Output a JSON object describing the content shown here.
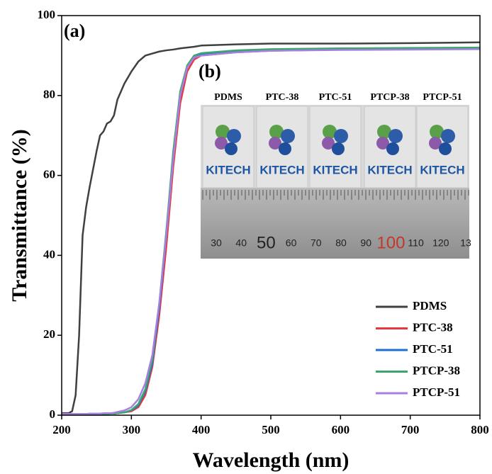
{
  "chart_data": {
    "type": "line",
    "panel_label": "(a)",
    "x_label": "Wavelength (nm)",
    "y_label": "Transmittance (%)",
    "x": [
      200,
      210,
      215,
      220,
      225,
      230,
      235,
      240,
      250,
      255,
      260,
      265,
      270,
      275,
      280,
      290,
      300,
      310,
      320,
      330,
      340,
      350,
      360,
      370,
      380,
      390,
      400,
      450,
      500,
      600,
      700,
      800
    ],
    "series": [
      {
        "name": "PDMS",
        "color": "#404040",
        "values": [
          0.5,
          0.5,
          1,
          5,
          20,
          45,
          52,
          57,
          66,
          70,
          71,
          73,
          73.5,
          75,
          79,
          83,
          86,
          88.5,
          90,
          90.5,
          91,
          91.3,
          91.5,
          91.8,
          92,
          92.2,
          92.5,
          92.8,
          93,
          93,
          93.1,
          93.3
        ]
      },
      {
        "name": "PTC-38",
        "color": "#e8383d",
        "values": [
          0.2,
          0.2,
          0.2,
          0.2,
          0.2,
          0.2,
          0.2,
          0.2,
          0.3,
          0.3,
          0.3,
          0.3,
          0.4,
          0.4,
          0.5,
          0.7,
          1,
          2,
          5,
          12,
          25,
          42,
          62,
          78,
          86,
          89,
          90,
          90.8,
          91.2,
          91.5,
          91.7,
          91.8
        ]
      },
      {
        "name": "PTC-51",
        "color": "#1f6fd0",
        "values": [
          0.2,
          0.2,
          0.2,
          0.2,
          0.2,
          0.2,
          0.2,
          0.2,
          0.3,
          0.3,
          0.3,
          0.3,
          0.4,
          0.4,
          0.5,
          0.7,
          1.2,
          2.5,
          6,
          13,
          27,
          45,
          65,
          80,
          87,
          89.5,
          90.3,
          91,
          91.3,
          91.5,
          91.6,
          91.8
        ]
      },
      {
        "name": "PTCP-38",
        "color": "#3aa86b",
        "values": [
          0.2,
          0.2,
          0.2,
          0.2,
          0.2,
          0.2,
          0.2,
          0.2,
          0.3,
          0.3,
          0.3,
          0.3,
          0.4,
          0.4,
          0.5,
          0.7,
          1.3,
          2.8,
          6.5,
          14,
          28,
          46,
          66,
          81,
          87.5,
          90,
          90.6,
          91.3,
          91.6,
          91.8,
          91.9,
          92
        ]
      },
      {
        "name": "PTCP-51",
        "color": "#a77fe0",
        "values": [
          0.3,
          0.3,
          0.3,
          0.3,
          0.3,
          0.3,
          0.3,
          0.4,
          0.4,
          0.4,
          0.5,
          0.5,
          0.5,
          0.6,
          0.8,
          1.2,
          2,
          4,
          8,
          15,
          28,
          45,
          64,
          80,
          87,
          89.5,
          90,
          90.8,
          91.2,
          91.4,
          91.5,
          91.6
        ]
      }
    ],
    "xlim": [
      200,
      800
    ],
    "xticks": [
      200,
      300,
      400,
      500,
      600,
      700,
      800
    ],
    "ylim": [
      0,
      100
    ],
    "yticks": [
      0,
      20,
      40,
      60,
      80,
      100
    ],
    "legend": "lower right"
  },
  "inset": {
    "label": "(b)",
    "samples": [
      "PDMS",
      "PTC-38",
      "PTC-51",
      "PTCP-38",
      "PTCP-51"
    ],
    "logo_text": "KITECH",
    "ruler_labels": [
      "30",
      "40",
      "50",
      "60",
      "70",
      "80",
      "90",
      "100",
      "110",
      "120",
      "13"
    ]
  }
}
